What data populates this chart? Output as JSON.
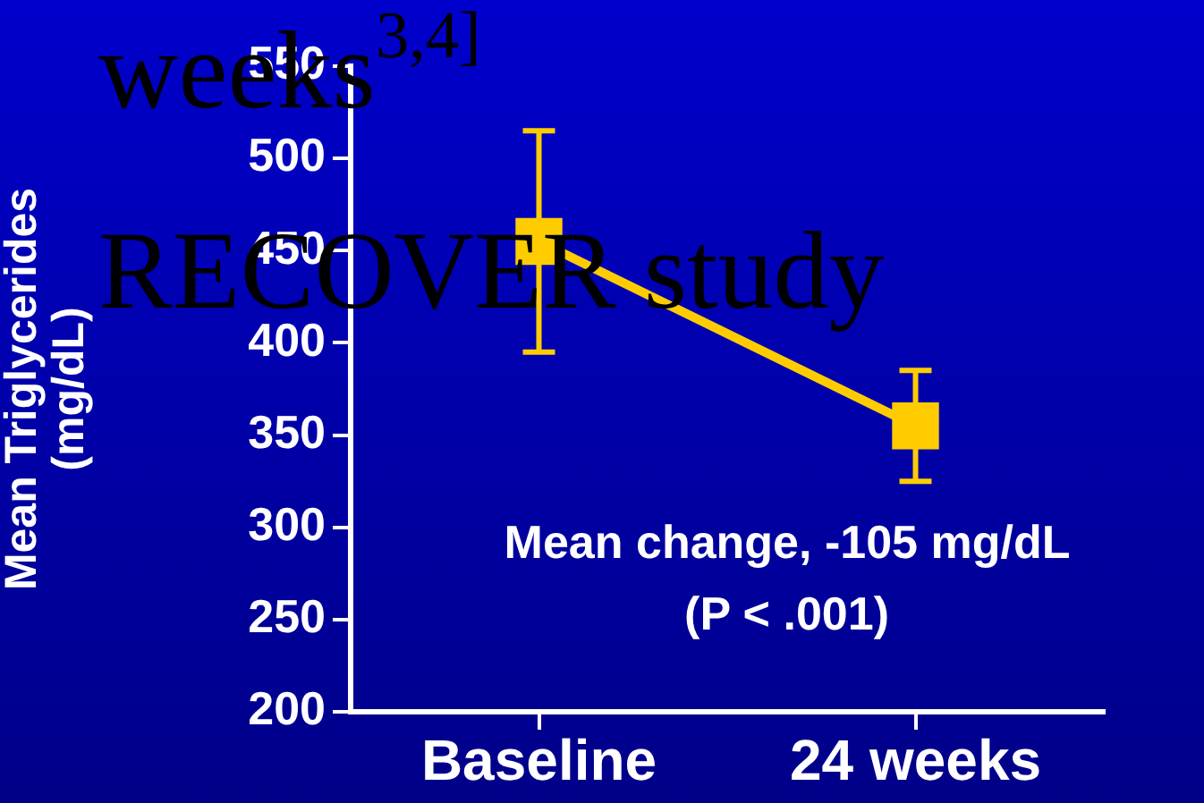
{
  "chart_data": {
    "type": "line",
    "ylabel": "Mean Triglycerides\n(mg/dL)",
    "categories": [
      "Baseline",
      "24 weeks"
    ],
    "series": [
      {
        "color": "#ffcc00",
        "values": [
          455,
          355
        ],
        "errors": [
          60,
          30
        ]
      }
    ],
    "ylim": [
      200,
      550
    ],
    "yticks": [
      200,
      250,
      300,
      350,
      400,
      450,
      500,
      550
    ],
    "marker": "square",
    "line_style": "solid",
    "grid": false,
    "legend": false,
    "annotations": [
      "weeks$^{3,4]}$",
      "RECOVER study",
      "Mean change, -105 mg/dL",
      "(P < .001)"
    ]
  }
}
